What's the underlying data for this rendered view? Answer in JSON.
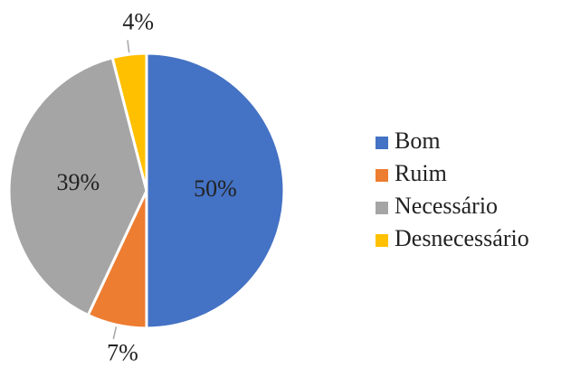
{
  "chart_data": {
    "type": "pie",
    "categories": [
      "Bom",
      "Ruim",
      "Necessário",
      "Desnecessário"
    ],
    "values": [
      50,
      7,
      39,
      4
    ],
    "value_labels": [
      "50%",
      "7%",
      "39%",
      "4%"
    ],
    "colors": [
      "#4472c4",
      "#ed7d31",
      "#a5a5a5",
      "#ffc000"
    ],
    "legend": "right"
  }
}
